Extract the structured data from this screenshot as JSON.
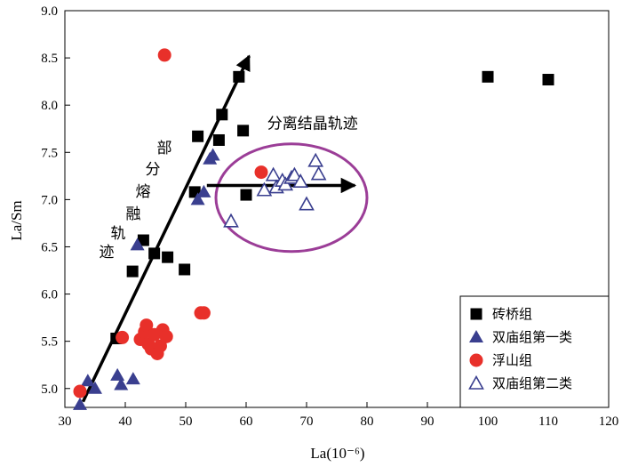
{
  "chart_data": {
    "type": "scatter",
    "xlabel": "La(10⁻⁶)",
    "ylabel": "La/Sm",
    "xlim": [
      30,
      120
    ],
    "ylim": [
      4.8,
      9.0
    ],
    "xticks": [
      "30",
      "40",
      "50",
      "60",
      "70",
      "80",
      "90",
      "100",
      "110",
      "120"
    ],
    "yticks": [
      "5.0",
      "5.5",
      "6.0",
      "6.5",
      "7.0",
      "7.5",
      "8.0",
      "8.5",
      "9.0"
    ],
    "grid": false,
    "legend_position": "bottom-right",
    "series": [
      {
        "name": "砖桥组",
        "marker": "filled-square",
        "color": "#000000",
        "points": [
          [
            38.5,
            5.53
          ],
          [
            41.2,
            6.24
          ],
          [
            43.0,
            6.57
          ],
          [
            44.8,
            6.43
          ],
          [
            47.0,
            6.39
          ],
          [
            49.8,
            6.26
          ],
          [
            51.5,
            7.08
          ],
          [
            52.0,
            7.67
          ],
          [
            55.5,
            7.63
          ],
          [
            56.0,
            7.9
          ],
          [
            58.8,
            8.3
          ],
          [
            59.5,
            7.73
          ],
          [
            60.0,
            7.05
          ],
          [
            100.0,
            8.3
          ],
          [
            110.0,
            8.27
          ]
        ]
      },
      {
        "name": "双庙组第一类",
        "marker": "filled-triangle",
        "color": "#3a3f8f",
        "points": [
          [
            32.5,
            4.83
          ],
          [
            33.8,
            5.08
          ],
          [
            35.0,
            5.0
          ],
          [
            38.7,
            5.14
          ],
          [
            39.3,
            5.04
          ],
          [
            41.3,
            5.1
          ],
          [
            42.0,
            6.52
          ],
          [
            52.0,
            7.0
          ],
          [
            53.0,
            7.08
          ],
          [
            54.0,
            7.43
          ],
          [
            54.5,
            7.47
          ]
        ]
      },
      {
        "name": "浮山组",
        "marker": "filled-circle",
        "color": "#e8302a",
        "points": [
          [
            32.5,
            4.97
          ],
          [
            39.5,
            5.54
          ],
          [
            42.5,
            5.52
          ],
          [
            43.2,
            5.6
          ],
          [
            43.5,
            5.67
          ],
          [
            43.8,
            5.47
          ],
          [
            44.3,
            5.42
          ],
          [
            44.8,
            5.57
          ],
          [
            45.3,
            5.37
          ],
          [
            45.8,
            5.45
          ],
          [
            46.2,
            5.62
          ],
          [
            46.8,
            5.55
          ],
          [
            46.5,
            8.53
          ],
          [
            52.5,
            5.8
          ],
          [
            53.0,
            5.8
          ],
          [
            62.5,
            7.29
          ]
        ]
      },
      {
        "name": "双庙组第二类",
        "marker": "open-triangle",
        "color": "#3a3f8f",
        "points": [
          [
            57.5,
            6.77
          ],
          [
            63.0,
            7.1
          ],
          [
            64.5,
            7.26
          ],
          [
            65.0,
            7.13
          ],
          [
            66.0,
            7.2
          ],
          [
            66.5,
            7.16
          ],
          [
            67.5,
            7.23
          ],
          [
            68.0,
            7.26
          ],
          [
            69.0,
            7.19
          ],
          [
            70.0,
            6.95
          ],
          [
            71.5,
            7.41
          ],
          [
            72.0,
            7.27
          ]
        ]
      }
    ],
    "annotations": [
      {
        "text": "分离结晶轨迹",
        "kind": "horizontal-arrow",
        "from": [
          53.5,
          7.15
        ],
        "to": [
          78.0,
          7.15
        ],
        "label_at": [
          71.0,
          7.75
        ]
      },
      {
        "text": [
          "部",
          "分",
          "熔",
          "融",
          "轨",
          "迹"
        ],
        "kind": "diagonal-arrow",
        "from": [
          33.0,
          4.86
        ],
        "to": [
          60.5,
          8.52
        ]
      },
      {
        "kind": "ellipse",
        "center": [
          67.5,
          7.02
        ],
        "radius": [
          12.5,
          0.57
        ],
        "color": "#9b3d97"
      }
    ]
  }
}
